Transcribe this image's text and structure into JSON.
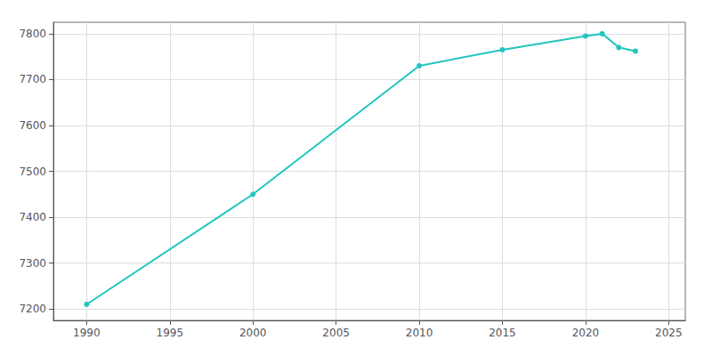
{
  "chart_data": {
    "type": "line",
    "x": [
      1990,
      2000,
      2010,
      2015,
      2020,
      2021,
      2022,
      2023
    ],
    "values": [
      7210,
      7450,
      7730,
      7765,
      7795,
      7800,
      7770,
      7762
    ],
    "color": "#20c5c0",
    "marker": "circle",
    "xlim": [
      1988,
      2026
    ],
    "ylim": [
      7175,
      7825
    ],
    "xticks": [
      1990,
      1995,
      2000,
      2005,
      2010,
      2015,
      2020,
      2025
    ],
    "yticks": [
      7200,
      7300,
      7400,
      7500,
      7600,
      7700,
      7800
    ],
    "grid": true
  }
}
